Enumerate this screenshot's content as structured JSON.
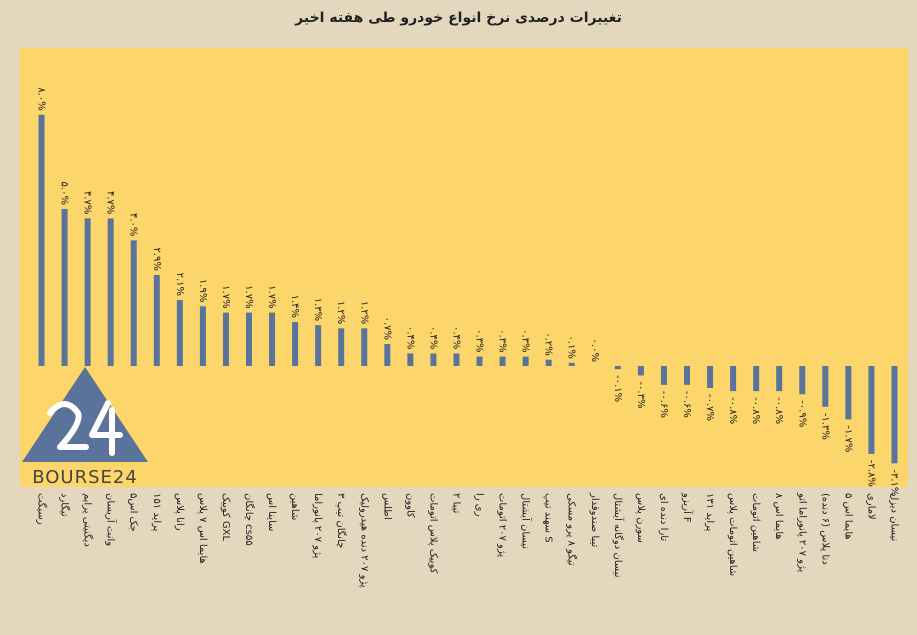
{
  "chart_data": {
    "type": "bar",
    "title": "تغییرات درصدی نرخ انواع خودرو طی هفته اخیر",
    "categories": [
      "رسیگت",
      "تیگارد",
      "دیگنیتی پرایم",
      "وانت آریسان",
      "جک اس۵",
      "پراید ۱۵۱",
      "رانا پلاس",
      "هایما اس ۷ پلاس",
      "کوییک GXL",
      "چانگان cs۵۵",
      "ساینا اس",
      "شاهین",
      "پژو ۲۰۷ پانوراما",
      "چانگان تیپ ۳",
      "پژو ۲۰۷ دنده هیدرولیک",
      "اطلس",
      "کاوون",
      "کوییک پلاس اتومات",
      "تیبا ۲",
      "ری را",
      "پژو ۲۰۷ اتومات",
      "نیسان آیشتال",
      "سهند تیپ S",
      "تیگو ۸ پرو مسکی",
      "تیبا صندوقدار",
      "نیسان دوگانه آیشتال",
      "سورن پلاس",
      "تارا دنده ای",
      "آریزو F",
      "پراید ۱۳۱",
      "شاهین اتومات پلاس",
      "شاهین اتومات",
      "هایما اس ۸",
      "پژو ۲۰۷ پانوراما اتو",
      "دنا پلاس (۶ دنده)",
      "هایما اس ۵",
      "لاماری",
      "نیسان دیزل"
    ],
    "values": [
      8.0,
      5.0,
      4.7,
      4.7,
      4.0,
      2.9,
      2.1,
      1.9,
      1.7,
      1.7,
      1.7,
      1.4,
      1.3,
      1.2,
      1.2,
      0.7,
      0.4,
      0.4,
      0.4,
      0.3,
      0.3,
      0.3,
      0.2,
      0.1,
      0.0,
      -0.1,
      -0.3,
      -0.6,
      -0.6,
      -0.7,
      -0.8,
      -0.8,
      -0.8,
      -0.9,
      -1.3,
      -1.7,
      -2.8,
      -3.1
    ],
    "value_labels": [
      "۸.۰%",
      "۵.۰%",
      "۴.۷%",
      "۴.۷%",
      "۴.۰%",
      "۲.۹%",
      "۲.۱%",
      "۱.۹%",
      "۱.۷%",
      "۱.۷%",
      "۱.۷%",
      "۱.۴%",
      "۱.۳%",
      "۱.۲%",
      "۱.۲%",
      "۰.۷%",
      "۰.۴%",
      "۰.۴%",
      "۰.۴%",
      "۰.۳%",
      "۰.۳%",
      "۰.۳%",
      "۰.۲%",
      "۰.۱%",
      "۰.۰%",
      "-۰.۱%",
      "-۰.۳%",
      "-۰.۶%",
      "-۰.۶%",
      "-۰.۷%",
      "-۰.۸%",
      "-۰.۸%",
      "-۰.۸%",
      "-۰.۹%",
      "-۱.۳%",
      "-۱.۷%",
      "-۲.۸%",
      "-۳.۱%"
    ],
    "ylim": [
      -3.1,
      8.0
    ],
    "grid": false,
    "legend": "none",
    "colors": {
      "bar": "#5a739a",
      "plot_background": "#fcd66a",
      "page_background": "#e3d8bd"
    }
  },
  "logo": {
    "text": "BOURSE24",
    "mark": "24",
    "colors": {
      "triangle": "#5a739a",
      "stroke": "#ffffff"
    }
  }
}
